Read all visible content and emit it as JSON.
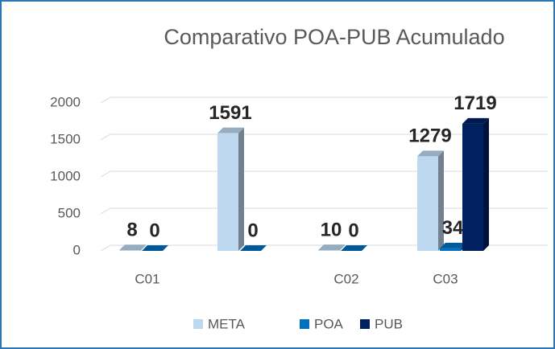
{
  "chart_data": {
    "type": "bar3d",
    "title": "Comparativo POA-PUB Acumulado",
    "categories": [
      "C01",
      null,
      "C02",
      "C03"
    ],
    "series": [
      {
        "name": "META",
        "color": "#bdd7ee",
        "values": [
          8,
          1591,
          10,
          1279
        ]
      },
      {
        "name": "POA",
        "color": "#0070c0",
        "values": [
          0,
          0,
          0,
          34
        ]
      },
      {
        "name": "PUB",
        "color": "#002060",
        "values": [
          null,
          null,
          null,
          1719
        ]
      }
    ],
    "ylim": [
      0,
      2000
    ],
    "yticks": [
      0,
      500,
      1000,
      1500,
      2000
    ],
    "grid": true,
    "legend": "bottom"
  }
}
